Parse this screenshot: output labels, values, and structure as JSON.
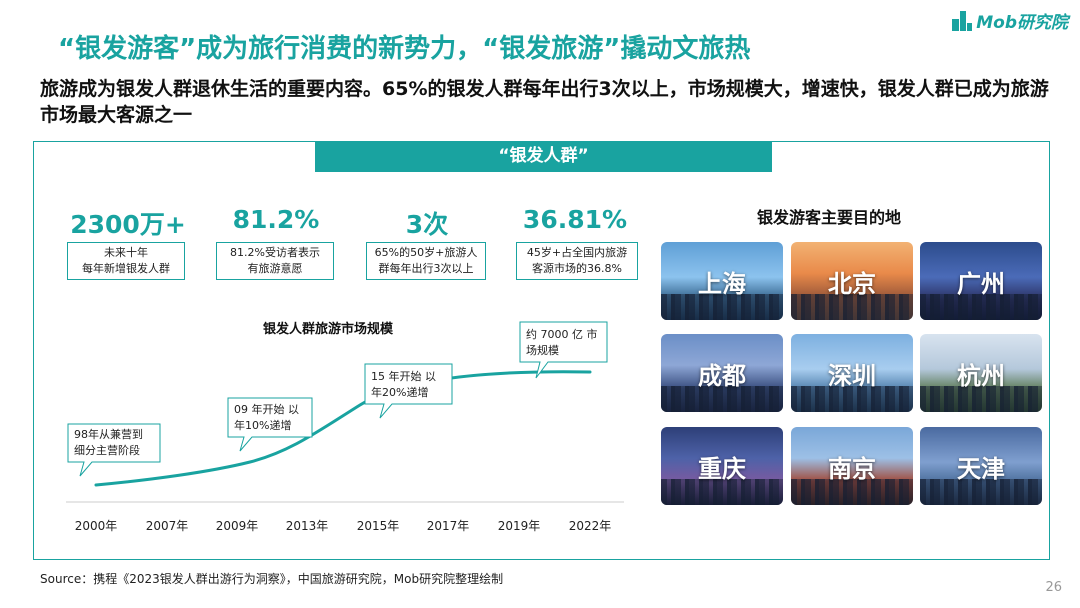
{
  "brand": {
    "logo_text": "Mob研究院",
    "accent": "#19a3a0"
  },
  "title": "“银发游客”成为旅行消费的新势力，“银发旅游”撬动文旅热",
  "subtitle": "旅游成为银发人群退休生活的重要内容。65%的银发人群每年出行3次以上，市场规模大，增速快，银发人群已成为旅游市场最大客源之一",
  "banner": "“银发人群”",
  "stats": [
    {
      "value": "2300万+",
      "desc": [
        "未来十年",
        "每年新增银发人群"
      ]
    },
    {
      "value": "81.2%",
      "desc": [
        "81.2%受访者表示",
        "有旅游意愿"
      ]
    },
    {
      "value": "3次",
      "desc": [
        "65%的50岁+旅游人",
        "群每年出行3次以上"
      ]
    },
    {
      "value": "36.81%",
      "desc": [
        "45岁+占全国内旅游",
        "客源市场的36.8%"
      ]
    }
  ],
  "chart_data": {
    "type": "line",
    "title": "银发人群旅游市场规模",
    "categories": [
      "2000年",
      "2007年",
      "2009年",
      "2013年",
      "2015年",
      "2017年",
      "2019年",
      "2022年"
    ],
    "annotations": [
      {
        "lines": [
          "98年从兼营到",
          "细分主营阶段"
        ]
      },
      {
        "lines": [
          "09 年开始 以",
          "年10%递增"
        ]
      },
      {
        "lines": [
          "15 年开始 以",
          "年20%递增"
        ]
      },
      {
        "lines": [
          "约 7000 亿 市",
          "场规模"
        ]
      }
    ]
  },
  "destinations": {
    "title": "银发游客主要目的地",
    "cities": [
      "上海",
      "北京",
      "广州",
      "成都",
      "深圳",
      "杭州",
      "重庆",
      "南京",
      "天津"
    ]
  },
  "source": "Source：携程《2023银发人群出游行为洞察》，中国旅游研究院，Mob研究院整理绘制",
  "page_number": "26"
}
